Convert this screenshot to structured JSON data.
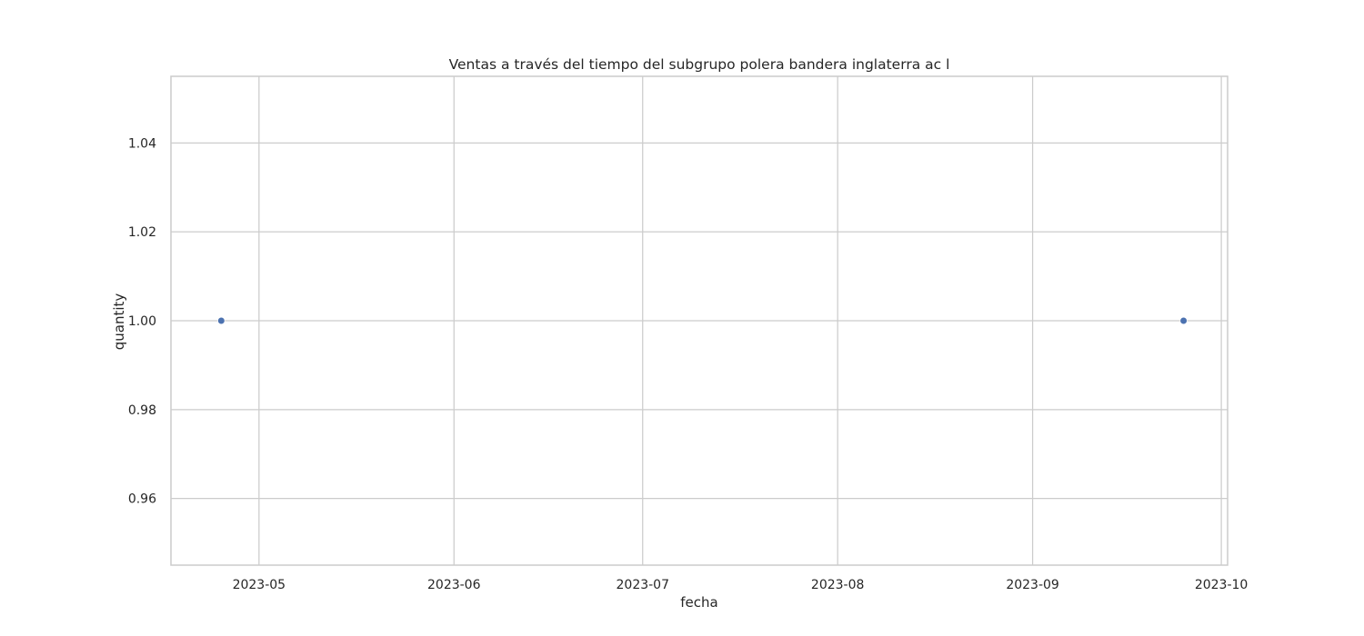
{
  "chart_data": {
    "type": "scatter",
    "title": "Ventas a través del tiempo del subgrupo polera bandera inglaterra ac l",
    "xlabel": "fecha",
    "ylabel": "quantity",
    "x_type": "date",
    "points": [
      {
        "x": "2023-04-25",
        "y": 1.0
      },
      {
        "x": "2023-09-25",
        "y": 1.0
      }
    ],
    "xlim": [
      "2023-04-17",
      "2023-10-02"
    ],
    "ylim": [
      0.945,
      1.055
    ],
    "x_ticks": [
      "2023-05",
      "2023-06",
      "2023-07",
      "2023-08",
      "2023-09",
      "2023-10"
    ],
    "y_ticks": [
      "0.96",
      "0.98",
      "1.00",
      "1.02",
      "1.04"
    ],
    "grid": true,
    "marker_color": "#4c72b0"
  }
}
